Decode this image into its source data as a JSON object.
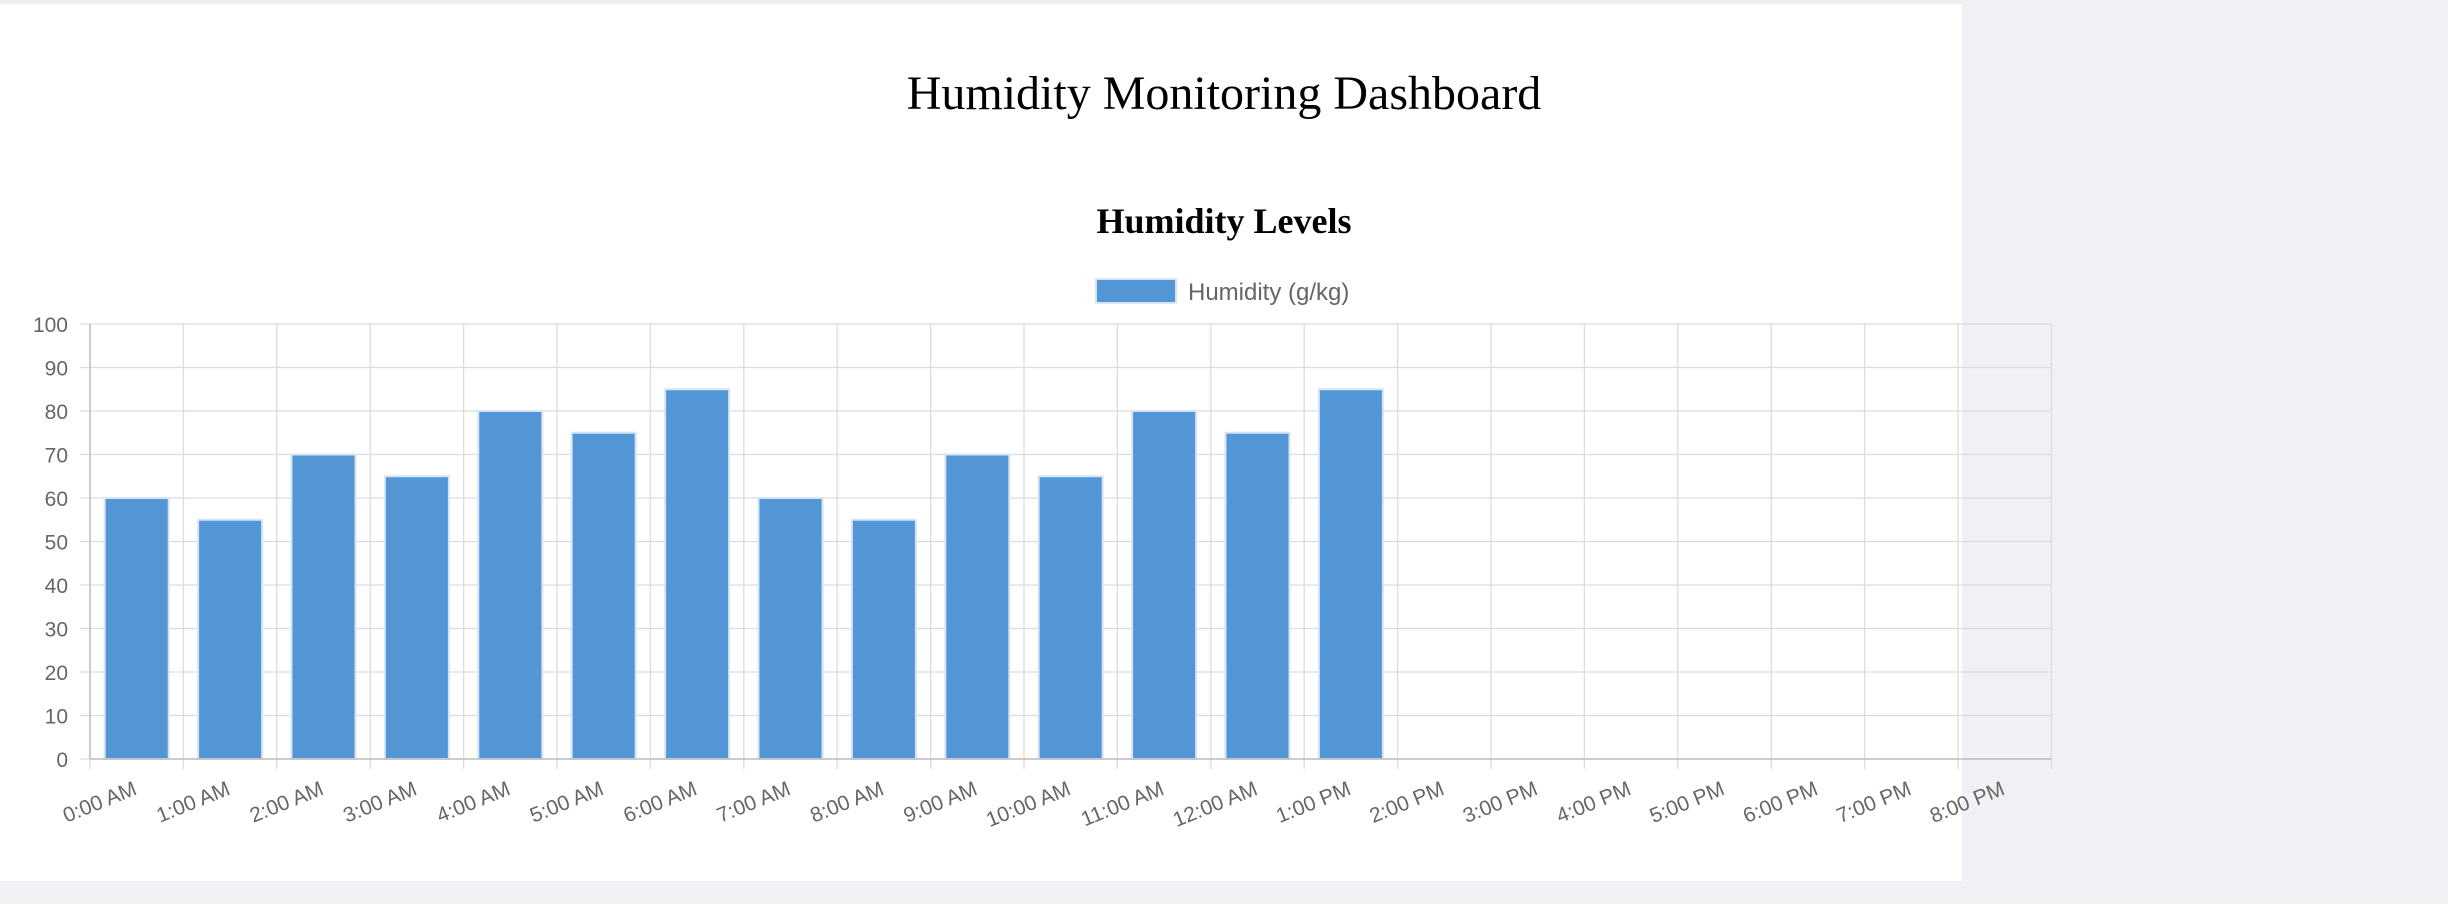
{
  "page": {
    "title": "Humidity Monitoring Dashboard"
  },
  "chart_data": {
    "type": "bar",
    "title": "Humidity Levels",
    "categories": [
      "0:00 AM",
      "1:00 AM",
      "2:00 AM",
      "3:00 AM",
      "4:00 AM",
      "5:00 AM",
      "6:00 AM",
      "7:00 AM",
      "8:00 AM",
      "9:00 AM",
      "10:00 AM",
      "11:00 AM",
      "12:00 AM",
      "1:00 PM",
      "2:00 PM",
      "3:00 PM",
      "4:00 PM",
      "5:00 PM",
      "6:00 PM",
      "7:00 PM",
      "8:00 PM"
    ],
    "series": [
      {
        "name": "Humidity (g/kg)",
        "color": "#5296d5",
        "values": [
          60,
          55,
          70,
          65,
          80,
          75,
          85,
          60,
          55,
          70,
          65,
          80,
          75,
          85,
          null,
          null,
          null,
          null,
          null,
          null,
          null
        ]
      }
    ],
    "ylim": [
      0,
      100
    ],
    "yticks": [
      0,
      10,
      20,
      30,
      40,
      50,
      60,
      70,
      80,
      90,
      100
    ],
    "grid": true,
    "legend": "top-center"
  }
}
